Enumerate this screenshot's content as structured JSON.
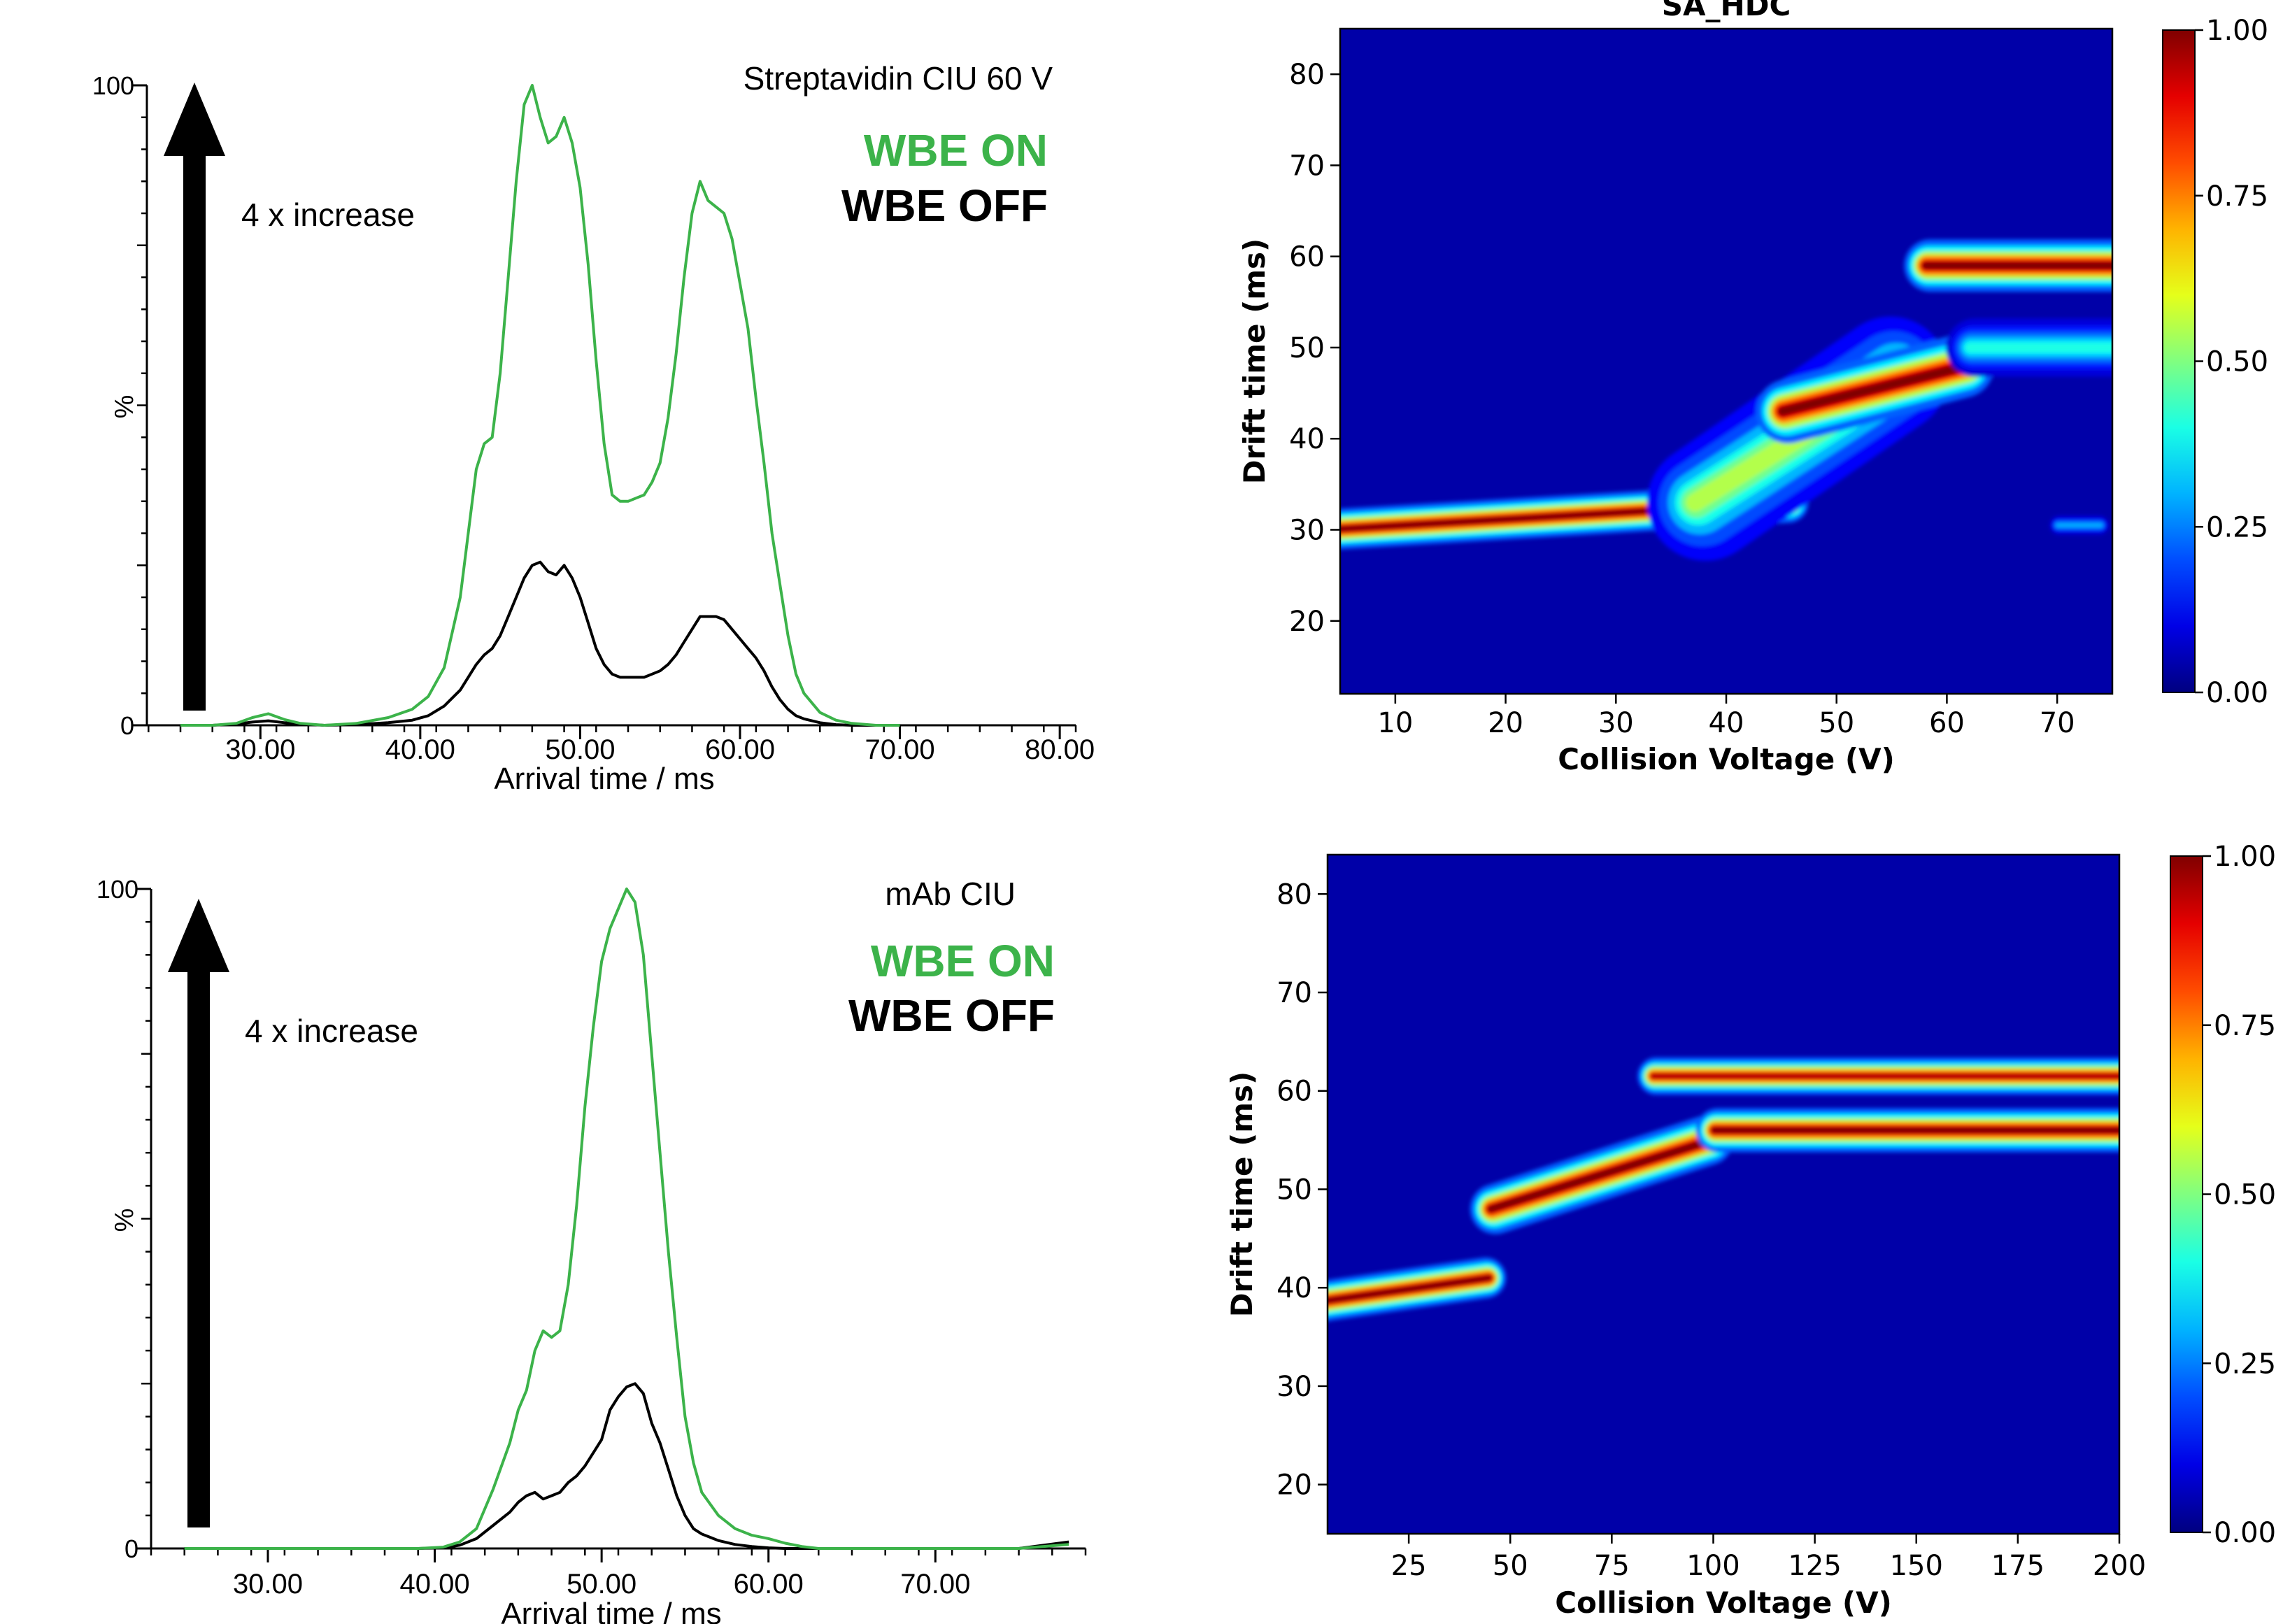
{
  "chart_data": [
    {
      "id": "panel_top_left",
      "type": "line",
      "title": "",
      "annotation": "Streptavidin CIU 60 V",
      "xlabel": "Arrival time / ms",
      "ylabel": "%",
      "xlim": [
        22.9,
        81.0
      ],
      "ylim": [
        0,
        100
      ],
      "x_ticks": [
        "30.00",
        "40.00",
        "50.00",
        "60.00",
        "70.00",
        "80.00"
      ],
      "x_tick_values": [
        30,
        40,
        50,
        60,
        70,
        80
      ],
      "y_ticks": [
        "100",
        "0"
      ],
      "y_tick_values": [
        100,
        0
      ],
      "arrow_label": "4 x increase",
      "legend": [
        {
          "label": "WBE ON",
          "color": "#3cb34a"
        },
        {
          "label": "WBE OFF",
          "color": "#000000"
        }
      ],
      "series": [
        {
          "name": "WBE ON",
          "color": "#3cb34a",
          "x": [
            25,
            27,
            28.5,
            29.5,
            30.5,
            31.5,
            32.5,
            34,
            36,
            38,
            39.5,
            40.5,
            41.5,
            42.5,
            43.5,
            44,
            44.5,
            45,
            45.5,
            46,
            46.5,
            47,
            47.5,
            48,
            48.5,
            49,
            49.5,
            50,
            50.5,
            51,
            51.5,
            52,
            52.5,
            53,
            53.5,
            54,
            54.5,
            55,
            55.5,
            56,
            56.5,
            57,
            57.5,
            58,
            58.5,
            59,
            59.5,
            60,
            60.5,
            61,
            61.5,
            62,
            62.5,
            63,
            63.5,
            64,
            65,
            66,
            67,
            68.5,
            70
          ],
          "y": [
            0,
            0,
            0.3,
            1.2,
            1.8,
            0.9,
            0.3,
            0,
            0.3,
            1.2,
            2.5,
            4.5,
            9,
            20,
            40,
            44,
            45,
            55,
            70,
            85,
            97,
            100,
            95,
            91,
            92,
            95,
            91,
            84,
            72,
            57,
            44,
            36,
            35,
            35,
            35.5,
            36,
            38,
            41,
            48,
            58,
            70,
            80,
            85,
            82,
            81,
            80,
            76,
            69,
            62,
            51,
            41,
            30,
            22,
            14,
            8,
            5,
            2,
            0.8,
            0.3,
            0,
            0
          ]
        },
        {
          "name": "WBE OFF",
          "color": "#000000",
          "x": [
            25,
            27,
            28.5,
            29.5,
            30.5,
            31.5,
            32.5,
            34,
            36,
            38,
            39.5,
            40.5,
            41.5,
            42.5,
            43.5,
            44,
            44.5,
            45,
            45.5,
            46,
            46.5,
            47,
            47.5,
            48,
            48.5,
            49,
            49.5,
            50,
            50.5,
            51,
            51.5,
            52,
            52.5,
            53,
            53.5,
            54,
            54.5,
            55,
            55.5,
            56,
            56.5,
            57,
            57.5,
            58,
            58.5,
            59,
            59.5,
            60,
            60.5,
            61,
            61.5,
            62,
            62.5,
            63,
            63.5,
            64,
            65,
            66,
            67,
            68.5,
            70
          ],
          "y": [
            0,
            0,
            0.2,
            0.5,
            0.7,
            0.4,
            0.2,
            0,
            0.1,
            0.4,
            0.8,
            1.5,
            3,
            5.5,
            9.5,
            11,
            12,
            14,
            17,
            20,
            23,
            25,
            25.5,
            24,
            23.5,
            25,
            23,
            20,
            16,
            12,
            9.5,
            8,
            7.5,
            7.5,
            7.5,
            7.5,
            8,
            8.5,
            9.5,
            11,
            13,
            15,
            17,
            17,
            17,
            16.5,
            15,
            13.5,
            12,
            10.5,
            8.5,
            6,
            4,
            2.5,
            1.5,
            1,
            0.4,
            0.1,
            0,
            0,
            0
          ]
        }
      ]
    },
    {
      "id": "panel_bottom_left",
      "type": "line",
      "title": "",
      "annotation": "mAb CIU",
      "xlabel": "Arrival time / ms",
      "ylabel": "%",
      "xlim": [
        23.0,
        79.0
      ],
      "ylim": [
        0,
        100
      ],
      "x_ticks": [
        "30.00",
        "40.00",
        "50.00",
        "60.00",
        "70.00"
      ],
      "x_tick_values": [
        30,
        40,
        50,
        60,
        70
      ],
      "y_ticks": [
        "100",
        "0"
      ],
      "y_tick_values": [
        100,
        0
      ],
      "arrow_label": "4 x increase",
      "legend": [
        {
          "label": "WBE ON",
          "color": "#3cb34a"
        },
        {
          "label": "WBE OFF",
          "color": "#000000"
        }
      ],
      "series": [
        {
          "name": "WBE ON",
          "color": "#3cb34a",
          "x": [
            25,
            35,
            39,
            40.5,
            41.5,
            42.5,
            43.5,
            44.5,
            45,
            45.5,
            46,
            46.5,
            47,
            47.5,
            48,
            48.5,
            49,
            49.5,
            50,
            50.5,
            51,
            51.5,
            52,
            52.5,
            53,
            53.5,
            54,
            54.5,
            55,
            55.5,
            56,
            57,
            58,
            59,
            60,
            61,
            62,
            63,
            65,
            70,
            75,
            78
          ],
          "y": [
            0,
            0,
            0,
            0.2,
            1,
            3,
            9,
            16,
            21,
            24,
            30,
            33,
            32,
            33,
            40,
            52,
            67,
            79,
            89,
            94,
            97,
            100,
            98,
            90,
            75,
            60,
            45,
            32,
            20,
            13,
            8.5,
            5,
            3,
            2,
            1.5,
            0.8,
            0.3,
            0,
            0,
            0,
            0,
            0.6
          ]
        },
        {
          "name": "WBE OFF",
          "color": "#000000",
          "x": [
            25,
            35,
            39,
            40.5,
            41.5,
            42.5,
            43.5,
            44.5,
            45,
            45.5,
            46,
            46.5,
            47,
            47.5,
            48,
            48.5,
            49,
            49.5,
            50,
            50.5,
            51,
            51.5,
            52,
            52.5,
            53,
            53.5,
            54,
            54.5,
            55,
            55.5,
            56,
            57,
            58,
            59,
            60,
            61,
            62,
            63,
            65,
            70,
            75,
            78
          ],
          "y": [
            0,
            0,
            0,
            0.1,
            0.5,
            1.5,
            3.5,
            5.5,
            7,
            8,
            8.5,
            7.5,
            8,
            8.5,
            10,
            11,
            12.5,
            14.5,
            16.5,
            21,
            23,
            24.5,
            25,
            23.5,
            19,
            16,
            12,
            8,
            5,
            3,
            2.2,
            1.2,
            0.6,
            0.3,
            0.1,
            0,
            0,
            0,
            0,
            0,
            0,
            1
          ]
        }
      ]
    },
    {
      "id": "panel_top_right",
      "type": "heatmap",
      "title": "SA_HDC",
      "xlabel": "Collision Voltage (V)",
      "ylabel": "Drift time (ms)",
      "xlim": [
        5,
        75
      ],
      "ylim": [
        12,
        85
      ],
      "x_ticks": [
        10,
        20,
        30,
        40,
        50,
        60,
        70
      ],
      "y_ticks": [
        20,
        30,
        40,
        50,
        60,
        70,
        80
      ],
      "colorbar": {
        "min": 0,
        "max": 1,
        "ticks": [
          "1.00",
          "0.75",
          "0.50",
          "0.25",
          "0.00"
        ],
        "tick_values": [
          1,
          0.75,
          0.5,
          0.25,
          0
        ],
        "colormap": "jet"
      },
      "features": [
        {
          "from_voltage": 5,
          "to_voltage": 46,
          "drift_start": 30,
          "drift_end": 33,
          "intensity": 1.0,
          "width": 1.4
        },
        {
          "from_voltage": 37,
          "to_voltage": 56,
          "drift_start": 33,
          "drift_end": 47,
          "intensity": 0.55,
          "width": 4.0
        },
        {
          "from_voltage": 45,
          "to_voltage": 62,
          "drift_start": 43,
          "drift_end": 48,
          "intensity": 1.0,
          "width": 2.2
        },
        {
          "from_voltage": 62,
          "to_voltage": 75,
          "drift_start": 50,
          "drift_end": 50,
          "intensity": 0.4,
          "width": 2.0
        },
        {
          "from_voltage": 58,
          "to_voltage": 75,
          "drift_start": 59,
          "drift_end": 59,
          "intensity": 1.0,
          "width": 1.8
        },
        {
          "from_voltage": 70,
          "to_voltage": 74,
          "drift_start": 30.5,
          "drift_end": 30.5,
          "intensity": 0.3,
          "width": 0.7
        }
      ]
    },
    {
      "id": "panel_bottom_right",
      "type": "heatmap",
      "title": "",
      "xlabel": "Collision Voltage (V)",
      "ylabel": "Drift time (ms)",
      "xlim": [
        5,
        200
      ],
      "ylim": [
        15,
        84
      ],
      "x_ticks": [
        25,
        50,
        75,
        100,
        125,
        150,
        175,
        200
      ],
      "y_ticks": [
        20,
        30,
        40,
        50,
        60,
        70,
        80
      ],
      "colorbar": {
        "min": 0,
        "max": 1,
        "ticks": [
          "1.00",
          "0.75",
          "0.50",
          "0.25",
          "0.00"
        ],
        "tick_values": [
          1,
          0.75,
          0.5,
          0.25,
          0
        ],
        "colormap": "jet"
      },
      "features": [
        {
          "from_voltage": 5,
          "to_voltage": 45,
          "drift_start": 38.5,
          "drift_end": 41,
          "intensity": 1.0,
          "width": 1.3
        },
        {
          "from_voltage": 45,
          "to_voltage": 100,
          "drift_start": 48,
          "drift_end": 55,
          "intensity": 1.0,
          "width": 1.6
        },
        {
          "from_voltage": 100,
          "to_voltage": 200,
          "drift_start": 56,
          "drift_end": 56,
          "intensity": 1.0,
          "width": 1.4
        },
        {
          "from_voltage": 85,
          "to_voltage": 200,
          "drift_start": 61.5,
          "drift_end": 61.5,
          "intensity": 0.95,
          "width": 1.2
        }
      ]
    }
  ]
}
